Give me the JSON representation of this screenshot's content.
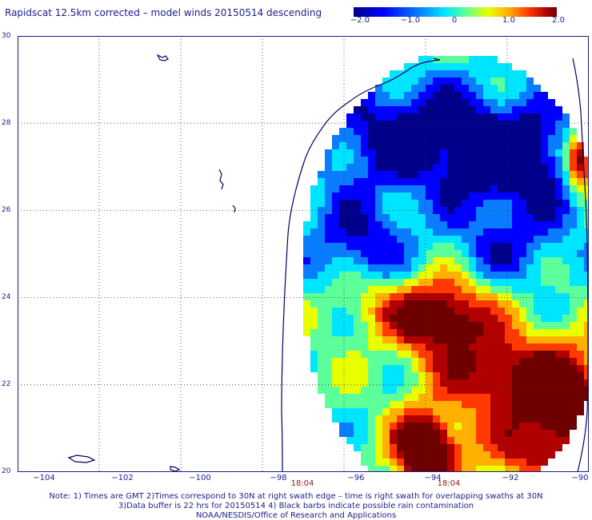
{
  "title": "Rapidscat 12.5km corrected – model winds 20150514 descending",
  "colorbar": {
    "ticks": [
      "−2.0",
      "−1.0",
      "0",
      "1.0",
      "2.0"
    ],
    "tick_values": [
      -2.0,
      -1.0,
      0,
      1.0,
      2.0
    ],
    "range": [
      -2.0,
      2.0
    ],
    "colors": [
      "#00008b",
      "#0000ff",
      "#0a7cff",
      "#00e5ff",
      "#5cff9a",
      "#e8ff00",
      "#ffb000",
      "#ff3a00",
      "#b00000",
      "#6e0000"
    ]
  },
  "map": {
    "lat_range": [
      20,
      30
    ],
    "lon_range": [
      -104,
      -90
    ],
    "lat_ticks": [
      "20",
      "22",
      "24",
      "26",
      "28",
      "30"
    ],
    "lon_ticks": [
      "−104",
      "−102",
      "−100",
      "−98",
      "−96",
      "−94",
      "−92",
      "−90"
    ],
    "times": [
      "18:04",
      "18:04"
    ],
    "grid": true,
    "coastline_color": "#000060"
  },
  "notes": [
    "Note: 1) Times are GMT 2)Times correspond to 30N at right swath edge – time is right swath for overlapping swaths at 30N",
    "3)Data buffer is 22 hrs for 20150514 4) Black barbs indicate possible rain contamination",
    "NOAA/NESDIS/Office of Research and Applications"
  ]
}
